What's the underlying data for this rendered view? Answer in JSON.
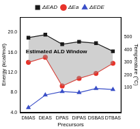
{
  "chart_data": {
    "type": "line",
    "categories": [
      "DMAS",
      "DEAS",
      "DPAS",
      "DIPAS",
      "DSBAS",
      "DTBAS"
    ],
    "series": [
      {
        "name": "ΔEAD",
        "color": "#1a1a1a",
        "marker": "square",
        "values": [
          18.9,
          19.5,
          17.6,
          18.1,
          17.8,
          16.2
        ]
      },
      {
        "name": "ΔEa",
        "color": "#e8332a",
        "marker": "circle",
        "values": [
          14.0,
          15.0,
          9.3,
          10.8,
          11.8,
          13.8
        ]
      },
      {
        "name": "ΔEDE",
        "color": "#3a4fc8",
        "marker": "triangle",
        "values": [
          5.0,
          7.5,
          8.2,
          8.0,
          8.8,
          8.6
        ]
      }
    ],
    "y_label": "Energy (kcal/mol)",
    "y2_label": "Temperature (°C)",
    "x_label": "Precursors",
    "ylim": [
      4,
      23
    ],
    "yticks": [
      {
        "value": 4,
        "label": "4.0"
      },
      {
        "value": 8,
        "label": "8.0"
      },
      {
        "value": 12,
        "label": "12.0"
      },
      {
        "value": 16,
        "label": "16.0"
      },
      {
        "value": 20,
        "label": "20.0"
      }
    ],
    "y2lim": [
      -100,
      660
    ],
    "y2ticks": [
      100,
      200,
      300,
      400,
      500
    ],
    "annotations": [
      {
        "text": "Estimated ALD Window"
      }
    ],
    "legend": "top",
    "grid": false
  }
}
